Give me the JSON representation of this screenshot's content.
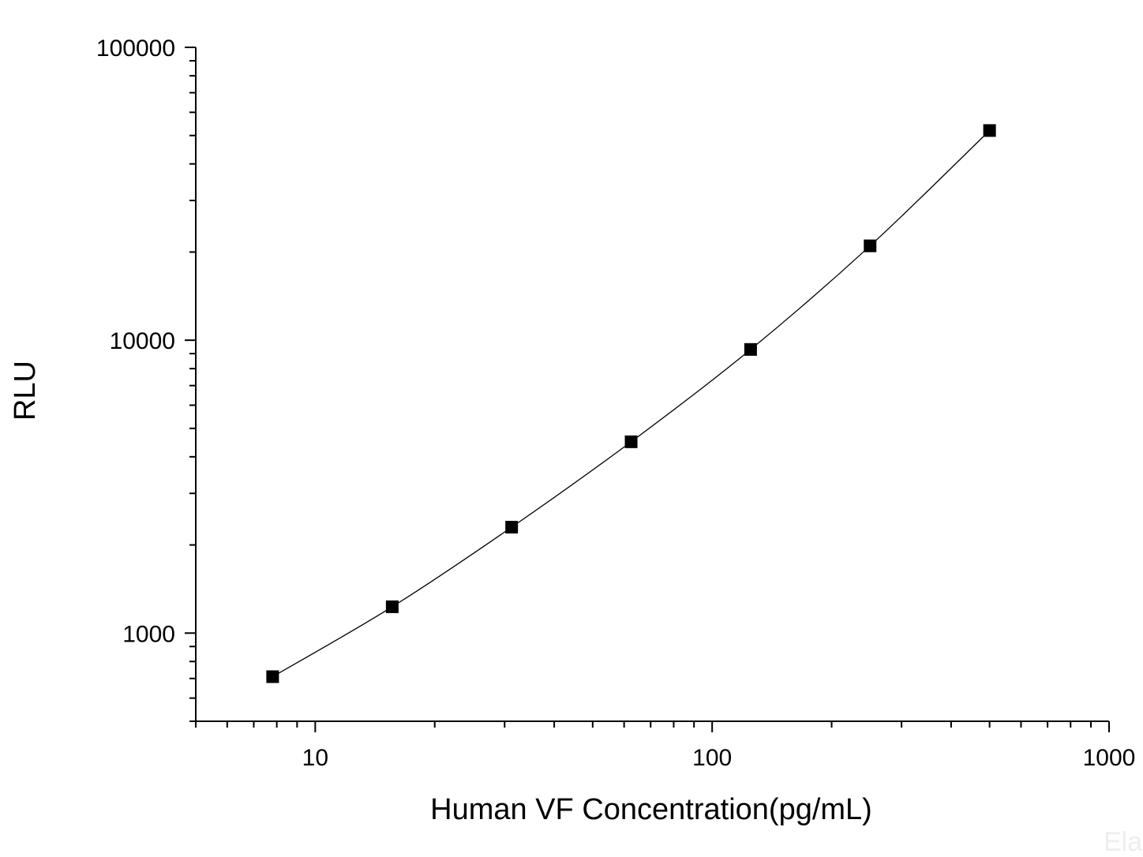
{
  "chart_data": {
    "type": "scatter",
    "title": "",
    "xlabel": "Human VF Concentration(pg/mL)",
    "ylabel": "RLU",
    "x_scale": "log",
    "y_scale": "log",
    "xlim": [
      5,
      1000
    ],
    "ylim": [
      500,
      100000
    ],
    "x_ticks": [
      10,
      100,
      1000
    ],
    "x_tick_labels": [
      "10",
      "100",
      "1000"
    ],
    "y_ticks": [
      1000,
      10000,
      100000
    ],
    "y_tick_labels": [
      "1000",
      "10000",
      "100000"
    ],
    "grid": false,
    "legend": "none",
    "marker": "square",
    "fit_line": true,
    "series": [
      {
        "x": [
          7.81,
          15.63,
          31.25,
          62.5,
          125,
          250,
          500
        ],
        "y": [
          710,
          1230,
          2300,
          4500,
          9300,
          21000,
          52000
        ]
      }
    ],
    "colors": {
      "marker": "#000000",
      "line": "#000000",
      "axis": "#000000"
    }
  },
  "watermark": "Ela"
}
